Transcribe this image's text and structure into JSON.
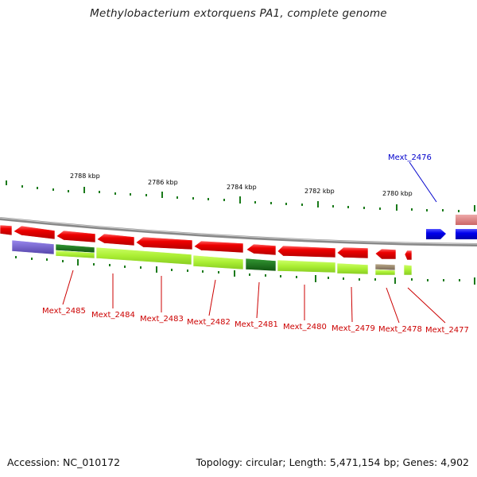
{
  "title": "Methylobacterium extorquens PA1, complete genome",
  "footer": {
    "accession": "Accession: NC_010172",
    "summary": "Topology: circular; Length: 5,471,154 bp; Genes: 4,902"
  },
  "scale_labels": [
    "2788 kbp",
    "2786 kbp",
    "2784 kbp",
    "2782 kbp",
    "2780 kbp"
  ],
  "gene_labels": [
    {
      "name": "Mext_2476",
      "color": "#0000cc"
    },
    {
      "name": "Mext_2485",
      "color": "#cc0000"
    },
    {
      "name": "Mext_2484",
      "color": "#cc0000"
    },
    {
      "name": "Mext_2483",
      "color": "#cc0000"
    },
    {
      "name": "Mext_2482",
      "color": "#cc0000"
    },
    {
      "name": "Mext_2481",
      "color": "#cc0000"
    },
    {
      "name": "Mext_2480",
      "color": "#cc0000"
    },
    {
      "name": "Mext_2479",
      "color": "#cc0000"
    },
    {
      "name": "Mext_2478",
      "color": "#cc0000"
    },
    {
      "name": "Mext_2477",
      "color": "#cc0000"
    }
  ],
  "colors": {
    "reverse_gene": "#ee0000",
    "forward_gene": "#0000ee",
    "backbone": "#888888",
    "ticks": "#1a7a1a",
    "function_purple": "#7766cc",
    "function_lime": "#aaee33",
    "function_darkgreen": "#227722",
    "function_tan": "#998866",
    "function_pink": "#dd8888"
  }
}
